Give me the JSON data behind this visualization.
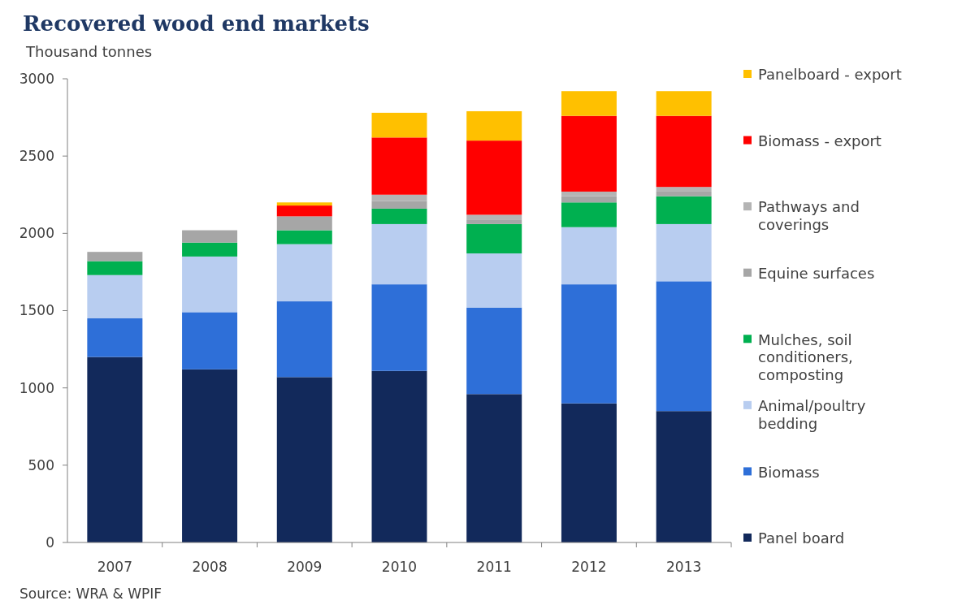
{
  "chart_data": {
    "type": "bar",
    "stacked": true,
    "title": "Recovered wood end markets",
    "ylabel": "Thousand tonnes",
    "categories": [
      "2007",
      "2008",
      "2009",
      "2010",
      "2011",
      "2012",
      "2013"
    ],
    "series": [
      {
        "name": "Panel board",
        "color": "#12295b",
        "values": [
          1200,
          1120,
          1070,
          1110,
          960,
          900,
          850
        ]
      },
      {
        "name": "Biomass",
        "color": "#2e6fd8",
        "values": [
          250,
          370,
          490,
          560,
          560,
          770,
          840
        ]
      },
      {
        "name": "Animal/poultry bedding",
        "color": "#b8cdf0",
        "values": [
          280,
          360,
          370,
          390,
          350,
          370,
          370
        ]
      },
      {
        "name": "Mulches, soil conditioners, composting",
        "color": "#00b050",
        "values": [
          90,
          90,
          90,
          100,
          190,
          160,
          180
        ]
      },
      {
        "name": "Equine surfaces",
        "color": "#a6a6a6",
        "values": [
          60,
          80,
          90,
          50,
          30,
          40,
          30
        ]
      },
      {
        "name": "Pathways and coverings",
        "color": "#b4b4b4",
        "values": [
          null,
          null,
          null,
          40,
          30,
          30,
          30
        ]
      },
      {
        "name": "Biomass - export",
        "color": "#ff0000",
        "values": [
          null,
          null,
          70,
          370,
          480,
          490,
          460
        ]
      },
      {
        "name": "Panelboard - export",
        "color": "#ffc000",
        "values": [
          null,
          null,
          20,
          160,
          190,
          160,
          160
        ]
      }
    ],
    "ylim": [
      0,
      3000
    ],
    "yticks": [
      0,
      500,
      1000,
      1500,
      2000,
      2500,
      3000
    ],
    "grid": false,
    "legend": "right",
    "annotations": [
      "Source: WRA & WPIF"
    ]
  }
}
